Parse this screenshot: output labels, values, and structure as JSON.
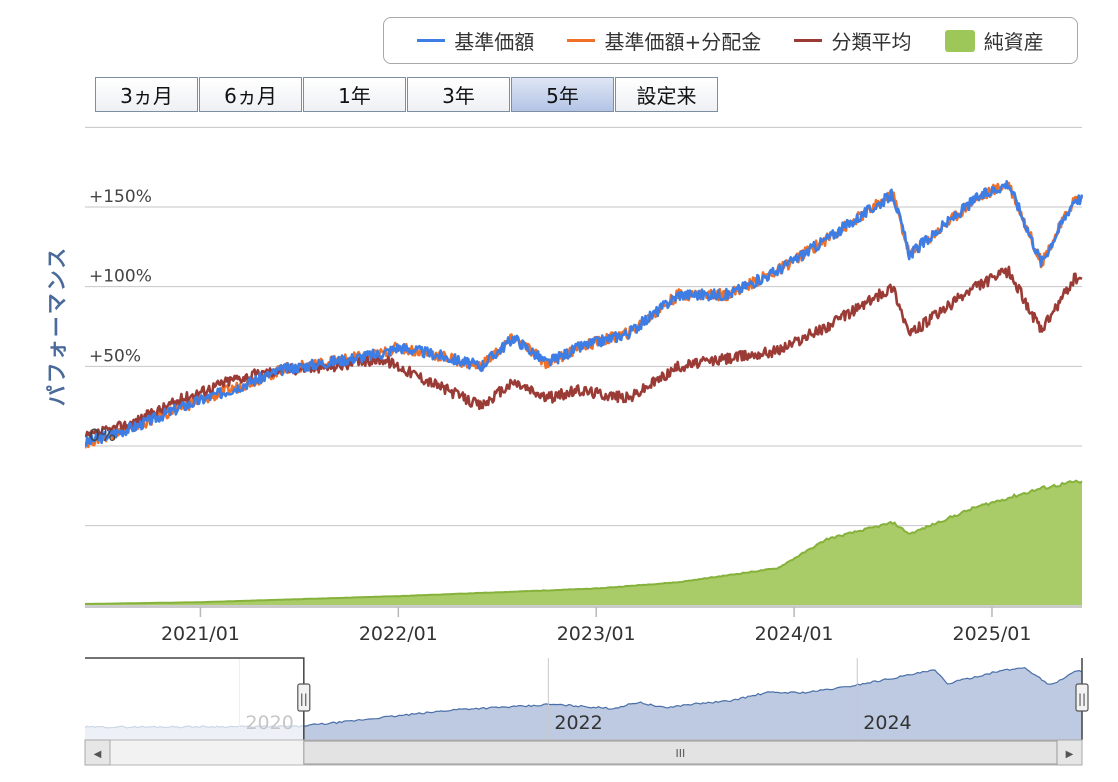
{
  "legend": {
    "items": [
      {
        "label": "基準価額",
        "color": "#3c7de6",
        "kind": "line"
      },
      {
        "label": "基準価額+分配金",
        "color": "#f07028",
        "kind": "line"
      },
      {
        "label": "分類平均",
        "color": "#9b3b36",
        "kind": "line"
      },
      {
        "label": "純資産",
        "color": "#9ec75a",
        "kind": "area"
      }
    ]
  },
  "range_buttons": [
    {
      "label": "3ヵ月",
      "selected": false
    },
    {
      "label": "6ヵ月",
      "selected": false
    },
    {
      "label": "1年",
      "selected": false
    },
    {
      "label": "3年",
      "selected": false
    },
    {
      "label": "5年",
      "selected": true
    },
    {
      "label": "設定来",
      "selected": false
    }
  ],
  "chart_data": {
    "type": "line",
    "ylabel": "パフォーマンス",
    "y_ticks": [
      "+150%",
      "+100%",
      "+50%",
      "0%"
    ],
    "y_tick_values": [
      150,
      100,
      50,
      0
    ],
    "ylim": [
      -100,
      200
    ],
    "xlim": [
      "2020-06-01",
      "2025-06-15"
    ],
    "x_ticks": [
      "2021/01",
      "2022/01",
      "2023/01",
      "2024/01",
      "2025/01"
    ],
    "grid": true,
    "legend_position": "top-right",
    "series": [
      {
        "name": "基準価額",
        "color": "#3c7de6",
        "x": [
          "2020-06",
          "2020-09",
          "2020-12",
          "2021-03",
          "2021-06",
          "2021-09",
          "2021-12",
          "2022-01",
          "2022-03",
          "2022-06",
          "2022-08",
          "2022-10",
          "2022-12",
          "2023-03",
          "2023-06",
          "2023-09",
          "2023-12",
          "2024-03",
          "2024-07",
          "2024-08",
          "2024-12",
          "2025-02",
          "2025-04",
          "2025-06"
        ],
        "y": [
          2,
          12,
          25,
          36,
          48,
          53,
          58,
          62,
          58,
          50,
          68,
          52,
          62,
          71,
          95,
          95,
          110,
          130,
          158,
          120,
          155,
          165,
          115,
          155
        ]
      },
      {
        "name": "基準価額+分配金",
        "color": "#f07028",
        "x": [
          "2020-06",
          "2020-09",
          "2020-12",
          "2021-03",
          "2021-06",
          "2021-09",
          "2021-12",
          "2022-01",
          "2022-03",
          "2022-06",
          "2022-08",
          "2022-10",
          "2022-12",
          "2023-03",
          "2023-06",
          "2023-09",
          "2023-12",
          "2024-03",
          "2024-07",
          "2024-08",
          "2024-12",
          "2025-02",
          "2025-04",
          "2025-06"
        ],
        "y": [
          2,
          12,
          25,
          36,
          48,
          53,
          58,
          62,
          58,
          50,
          68,
          52,
          62,
          71,
          95,
          95,
          110,
          130,
          158,
          120,
          155,
          165,
          115,
          155
        ]
      },
      {
        "name": "分類平均",
        "color": "#9b3b36",
        "x": [
          "2020-06",
          "2020-09",
          "2020-12",
          "2021-03",
          "2021-06",
          "2021-09",
          "2021-12",
          "2022-01",
          "2022-03",
          "2022-06",
          "2022-08",
          "2022-10",
          "2022-12",
          "2023-03",
          "2023-06",
          "2023-09",
          "2023-12",
          "2024-03",
          "2024-07",
          "2024-08",
          "2024-12",
          "2025-02",
          "2025-04",
          "2025-06"
        ],
        "y": [
          5,
          15,
          30,
          42,
          48,
          50,
          55,
          50,
          40,
          25,
          40,
          30,
          35,
          30,
          50,
          55,
          60,
          75,
          100,
          70,
          100,
          110,
          72,
          105
        ]
      },
      {
        "name": "純資産",
        "x": [
          "2020-06",
          "2021-01",
          "2022-01",
          "2023-01",
          "2023-06",
          "2023-12",
          "2024-03",
          "2024-07",
          "2024-08",
          "2024-12",
          "2025-04",
          "2025-06"
        ],
        "y": [
          0.4,
          1.1,
          3.5,
          6.5,
          9.0,
          14.5,
          26.0,
          32.5,
          28.0,
          38.5,
          46.0,
          48.5
        ]
      }
    ]
  },
  "navigator": {
    "x_labels": [
      "2020",
      "2022",
      "2024"
    ],
    "x_label_years": [
      2020,
      2022,
      2024
    ],
    "handle_glyph": "||",
    "scrollbar_glyph": "III",
    "left_arrow": "◀",
    "right_arrow": "▶",
    "window": [
      "2020-06-01",
      "2025-06-15"
    ]
  }
}
